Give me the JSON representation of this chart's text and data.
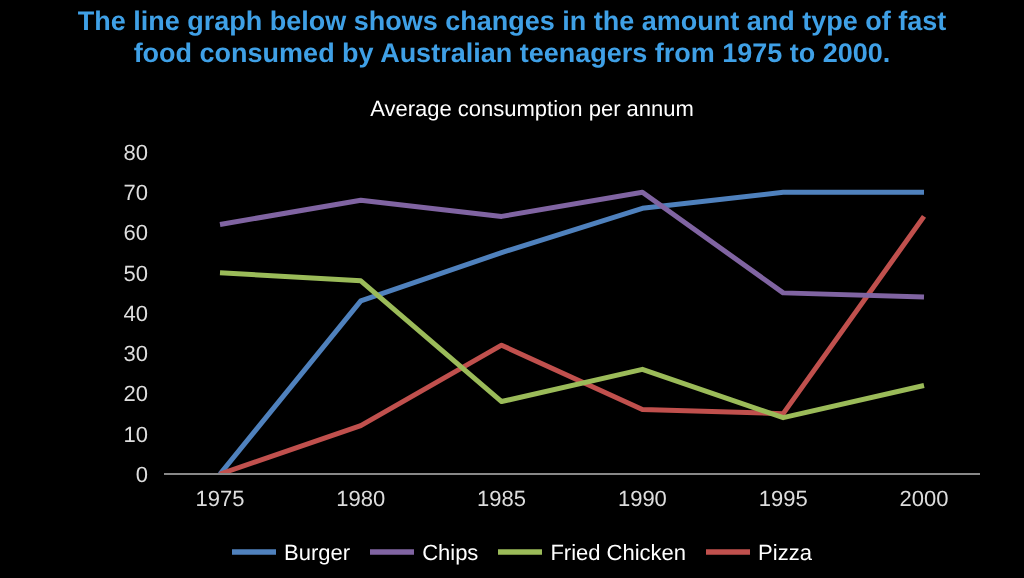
{
  "chart_data": {
    "type": "line",
    "title": "The line graph below shows changes in the amount and type of fast food consumed by Australian teenagers from 1975 to 2000.",
    "subtitle": "Average consumption per annum",
    "categories": [
      "1975",
      "1980",
      "1985",
      "1990",
      "1995",
      "2000"
    ],
    "series": [
      {
        "name": "Burger",
        "color": "#4f81bd",
        "values": [
          0,
          43,
          55,
          66,
          70,
          70
        ]
      },
      {
        "name": "Pizza",
        "color": "#c0504d",
        "values": [
          0,
          12,
          32,
          16,
          15,
          64
        ]
      },
      {
        "name": "Fried Chicken",
        "color": "#9bbb59",
        "values": [
          50,
          48,
          18,
          26,
          14,
          22
        ]
      },
      {
        "name": "Chips",
        "color": "#8064a2",
        "values": [
          62,
          68,
          64,
          70,
          45,
          44
        ]
      }
    ],
    "ylim": [
      0,
      80
    ],
    "yticks": [
      0,
      10,
      20,
      30,
      40,
      50,
      60,
      70,
      80
    ],
    "grid": false,
    "legend": "bottom",
    "marker": "none",
    "line_style": "solid"
  }
}
